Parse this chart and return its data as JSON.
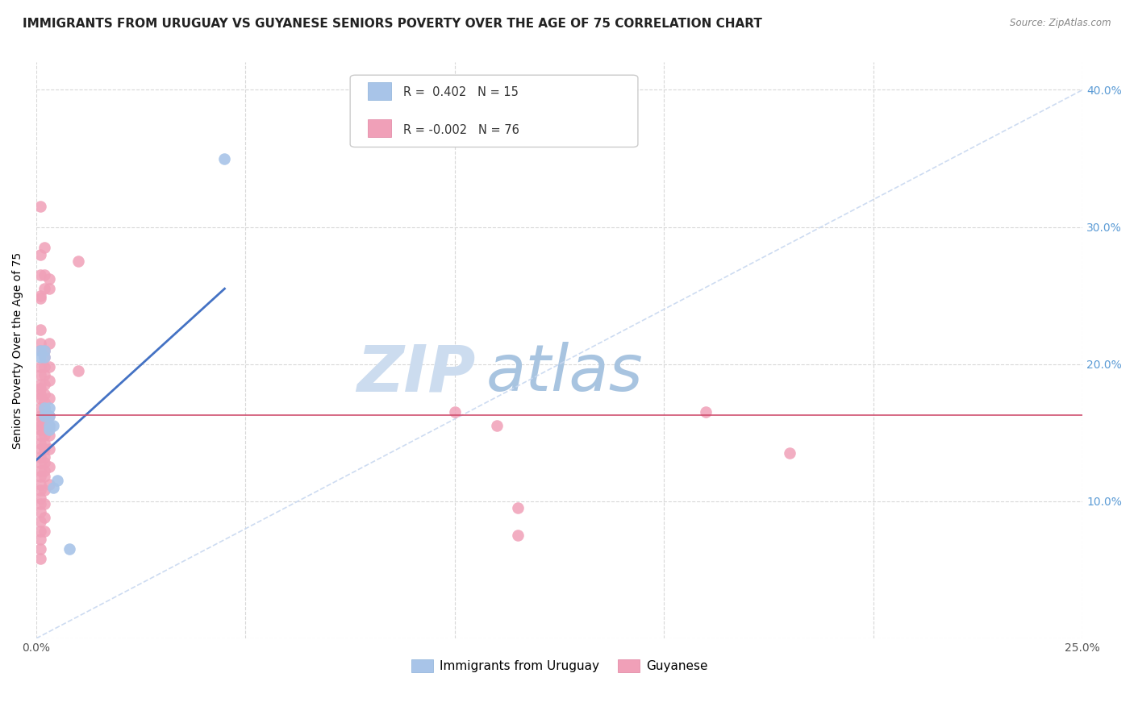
{
  "title": "IMMIGRANTS FROM URUGUAY VS GUYANESE SENIORS POVERTY OVER THE AGE OF 75 CORRELATION CHART",
  "source": "Source: ZipAtlas.com",
  "ylabel": "Seniors Poverty Over the Age of 75",
  "x_min": 0.0,
  "x_max": 0.25,
  "y_min": 0.0,
  "y_max": 0.42,
  "x_ticks": [
    0.0,
    0.05,
    0.1,
    0.15,
    0.2,
    0.25
  ],
  "y_ticks": [
    0.0,
    0.1,
    0.2,
    0.3,
    0.4
  ],
  "y_tick_labels_right": [
    "",
    "10.0%",
    "20.0%",
    "30.0%",
    "40.0%"
  ],
  "blue_scatter": [
    [
      0.001,
      0.21
    ],
    [
      0.001,
      0.205
    ],
    [
      0.002,
      0.21
    ],
    [
      0.002,
      0.205
    ],
    [
      0.002,
      0.168
    ],
    [
      0.002,
      0.162
    ],
    [
      0.003,
      0.168
    ],
    [
      0.003,
      0.162
    ],
    [
      0.003,
      0.155
    ],
    [
      0.003,
      0.152
    ],
    [
      0.004,
      0.155
    ],
    [
      0.004,
      0.11
    ],
    [
      0.005,
      0.115
    ],
    [
      0.008,
      0.065
    ],
    [
      0.045,
      0.35
    ]
  ],
  "pink_scatter": [
    [
      0.001,
      0.315
    ],
    [
      0.001,
      0.28
    ],
    [
      0.001,
      0.265
    ],
    [
      0.001,
      0.25
    ],
    [
      0.001,
      0.248
    ],
    [
      0.001,
      0.225
    ],
    [
      0.001,
      0.215
    ],
    [
      0.001,
      0.21
    ],
    [
      0.001,
      0.198
    ],
    [
      0.001,
      0.192
    ],
    [
      0.001,
      0.185
    ],
    [
      0.001,
      0.182
    ],
    [
      0.001,
      0.178
    ],
    [
      0.001,
      0.175
    ],
    [
      0.001,
      0.168
    ],
    [
      0.001,
      0.162
    ],
    [
      0.001,
      0.158
    ],
    [
      0.001,
      0.155
    ],
    [
      0.001,
      0.152
    ],
    [
      0.001,
      0.148
    ],
    [
      0.001,
      0.142
    ],
    [
      0.001,
      0.138
    ],
    [
      0.001,
      0.132
    ],
    [
      0.001,
      0.128
    ],
    [
      0.001,
      0.122
    ],
    [
      0.001,
      0.118
    ],
    [
      0.001,
      0.112
    ],
    [
      0.001,
      0.108
    ],
    [
      0.001,
      0.102
    ],
    [
      0.001,
      0.098
    ],
    [
      0.001,
      0.092
    ],
    [
      0.001,
      0.085
    ],
    [
      0.001,
      0.078
    ],
    [
      0.001,
      0.072
    ],
    [
      0.001,
      0.065
    ],
    [
      0.001,
      0.058
    ],
    [
      0.002,
      0.285
    ],
    [
      0.002,
      0.265
    ],
    [
      0.002,
      0.255
    ],
    [
      0.002,
      0.21
    ],
    [
      0.002,
      0.205
    ],
    [
      0.002,
      0.198
    ],
    [
      0.002,
      0.192
    ],
    [
      0.002,
      0.185
    ],
    [
      0.002,
      0.178
    ],
    [
      0.002,
      0.172
    ],
    [
      0.002,
      0.168
    ],
    [
      0.002,
      0.162
    ],
    [
      0.002,
      0.158
    ],
    [
      0.002,
      0.152
    ],
    [
      0.002,
      0.148
    ],
    [
      0.002,
      0.142
    ],
    [
      0.002,
      0.138
    ],
    [
      0.002,
      0.132
    ],
    [
      0.002,
      0.128
    ],
    [
      0.002,
      0.122
    ],
    [
      0.002,
      0.118
    ],
    [
      0.002,
      0.108
    ],
    [
      0.002,
      0.098
    ],
    [
      0.002,
      0.088
    ],
    [
      0.002,
      0.078
    ],
    [
      0.003,
      0.262
    ],
    [
      0.003,
      0.255
    ],
    [
      0.003,
      0.215
    ],
    [
      0.003,
      0.198
    ],
    [
      0.003,
      0.188
    ],
    [
      0.003,
      0.175
    ],
    [
      0.003,
      0.162
    ],
    [
      0.003,
      0.155
    ],
    [
      0.003,
      0.148
    ],
    [
      0.003,
      0.138
    ],
    [
      0.003,
      0.125
    ],
    [
      0.003,
      0.112
    ],
    [
      0.01,
      0.275
    ],
    [
      0.01,
      0.195
    ],
    [
      0.1,
      0.165
    ],
    [
      0.11,
      0.155
    ],
    [
      0.115,
      0.095
    ],
    [
      0.16,
      0.165
    ],
    [
      0.18,
      0.135
    ],
    [
      0.115,
      0.075
    ]
  ],
  "blue_line_x": [
    0.0,
    0.045
  ],
  "blue_line_y": [
    0.13,
    0.255
  ],
  "pink_line_y": 0.163,
  "diag_line_x": [
    0.0,
    0.25
  ],
  "diag_line_y": [
    0.0,
    0.4
  ],
  "blue_line_color": "#4472c4",
  "pink_line_color": "#d05070",
  "blue_scatter_color": "#a8c4e8",
  "pink_scatter_color": "#f0a0b8",
  "diagonal_line_color": "#c8d8f0",
  "grid_color": "#d8d8d8",
  "background_color": "#ffffff",
  "title_fontsize": 11,
  "axis_label_fontsize": 10,
  "tick_fontsize": 10,
  "legend_fontsize": 11
}
